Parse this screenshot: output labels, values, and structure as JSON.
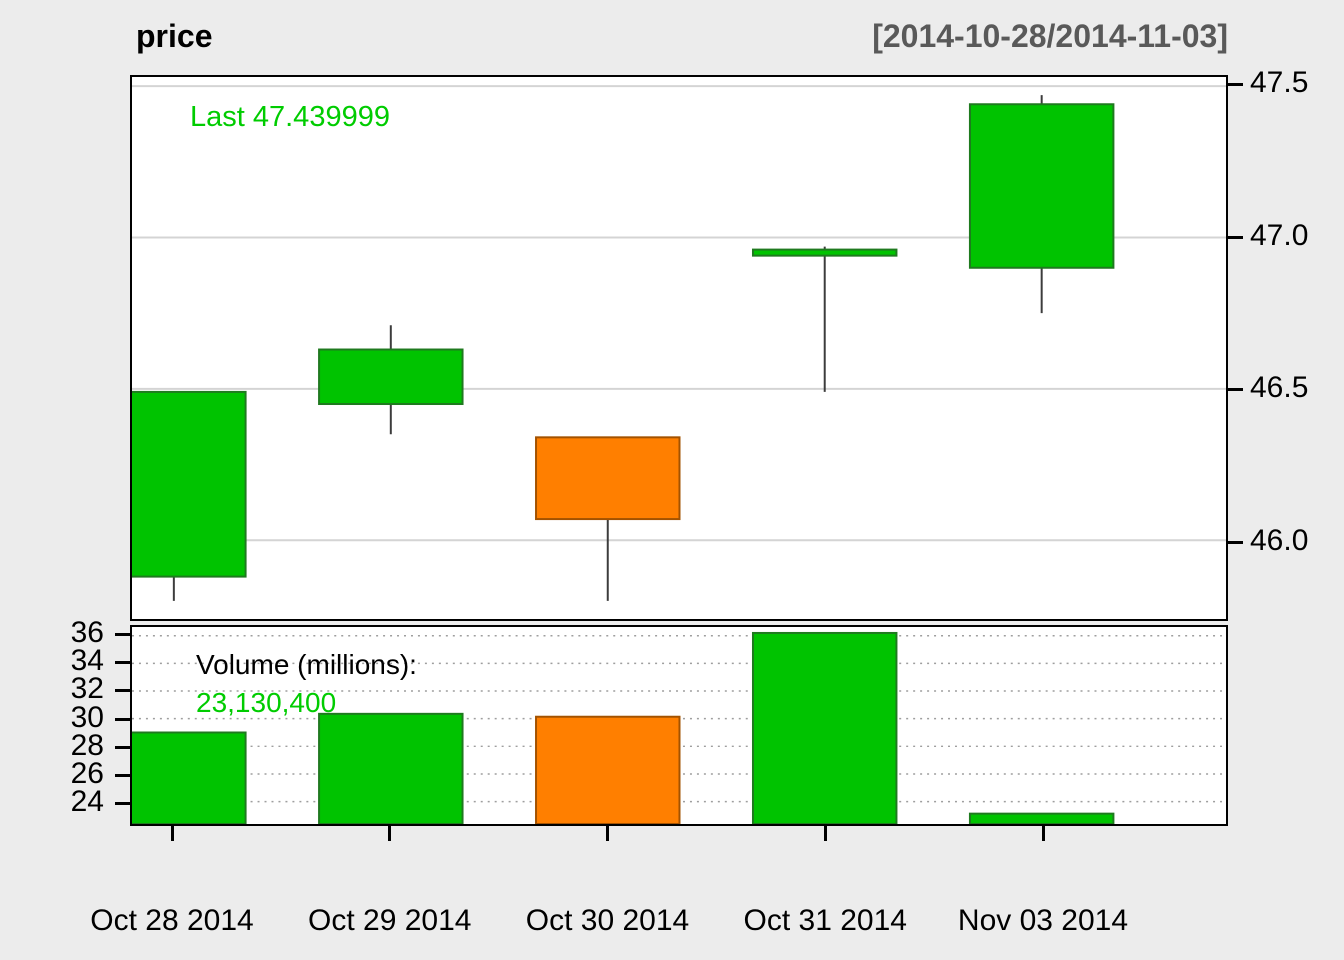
{
  "chart_data": {
    "type": "candlestick",
    "title": "price",
    "range_label": "[2014-10-28/2014-11-03]",
    "last_annotation": "Last 47.439999",
    "volume_label": "Volume (millions):",
    "volume_value_label": "23,130,400",
    "categories": [
      "Oct 28 2014",
      "Oct 29 2014",
      "Oct 30 2014",
      "Oct 31 2014",
      "Nov 03 2014"
    ],
    "series": [
      {
        "date": "Oct 28 2014",
        "open": 45.88,
        "high": 46.49,
        "low": 45.8,
        "close": 46.49,
        "direction": "up",
        "volume_millions": 29.0
      },
      {
        "date": "Oct 29 2014",
        "open": 46.45,
        "high": 46.71,
        "low": 46.35,
        "close": 46.63,
        "direction": "up",
        "volume_millions": 30.35
      },
      {
        "date": "Oct 30 2014",
        "open": 46.34,
        "high": 46.34,
        "low": 45.8,
        "close": 46.07,
        "direction": "down",
        "volume_millions": 30.14
      },
      {
        "date": "Oct 31 2014",
        "open": 46.94,
        "high": 46.97,
        "low": 46.49,
        "close": 46.96,
        "direction": "up",
        "volume_millions": 36.2
      },
      {
        "date": "Nov 03 2014",
        "open": 46.9,
        "high": 47.47,
        "low": 46.75,
        "close": 47.44,
        "direction": "up",
        "volume_millions": 23.13
      }
    ],
    "price_axis": {
      "position": "right",
      "ticks": [
        46.0,
        46.5,
        47.0,
        47.5
      ],
      "tick_labels": [
        "46.0",
        "46.5",
        "47.0",
        "47.5"
      ],
      "ylim": [
        45.74,
        47.53
      ]
    },
    "volume_axis": {
      "position": "left",
      "ticks": [
        24,
        26,
        28,
        30,
        32,
        34,
        36
      ],
      "tick_labels": [
        "24",
        "26",
        "28",
        "30",
        "32",
        "34",
        "36"
      ],
      "ylim": [
        22.38,
        36.63
      ]
    },
    "x_tick_labels": [
      "Oct 28 2014",
      "Oct 29 2014",
      "Oct 30 2014",
      "Oct 31 2014",
      "Nov 03 2014"
    ],
    "colors": {
      "up": "#00C300",
      "up_border": "#1F7A1F",
      "down": "#FF7F00",
      "down_border": "#A35200",
      "wick": "#3C3C3C",
      "last_text": "#00CC00",
      "volume_value_text": "#00CC00",
      "range_text": "#595959",
      "grid": "#D4D4D4",
      "volume_grid": "#9E9E9E",
      "background": "#ECECEC"
    }
  }
}
